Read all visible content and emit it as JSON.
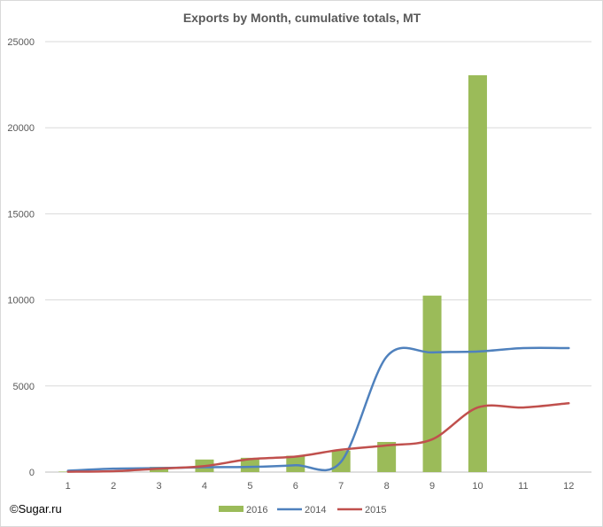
{
  "chart_data": {
    "type": "bar",
    "title": "Exports by Month, cumulative totals, MT",
    "categories": [
      "1",
      "2",
      "3",
      "4",
      "5",
      "6",
      "7",
      "8",
      "9",
      "10",
      "11",
      "12"
    ],
    "ylim": [
      0,
      25000
    ],
    "yticks": [
      0,
      5000,
      10000,
      15000,
      20000,
      25000
    ],
    "grid": true,
    "legend_position": "bottom",
    "series": [
      {
        "name": "2016",
        "kind": "bar",
        "color": "#9bbb59",
        "values": [
          30,
          80,
          300,
          730,
          830,
          950,
          1250,
          1750,
          10250,
          23050,
          null,
          null
        ]
      },
      {
        "name": "2014",
        "kind": "line",
        "color": "#4f81bd",
        "values": [
          80,
          200,
          230,
          280,
          300,
          400,
          600,
          6700,
          6950,
          7000,
          7200,
          7200
        ]
      },
      {
        "name": "2015",
        "kind": "line",
        "color": "#c0504d",
        "values": [
          20,
          50,
          200,
          350,
          750,
          900,
          1300,
          1550,
          1900,
          3750,
          3750,
          4000
        ]
      }
    ]
  },
  "watermark": "©Sugar.ru"
}
